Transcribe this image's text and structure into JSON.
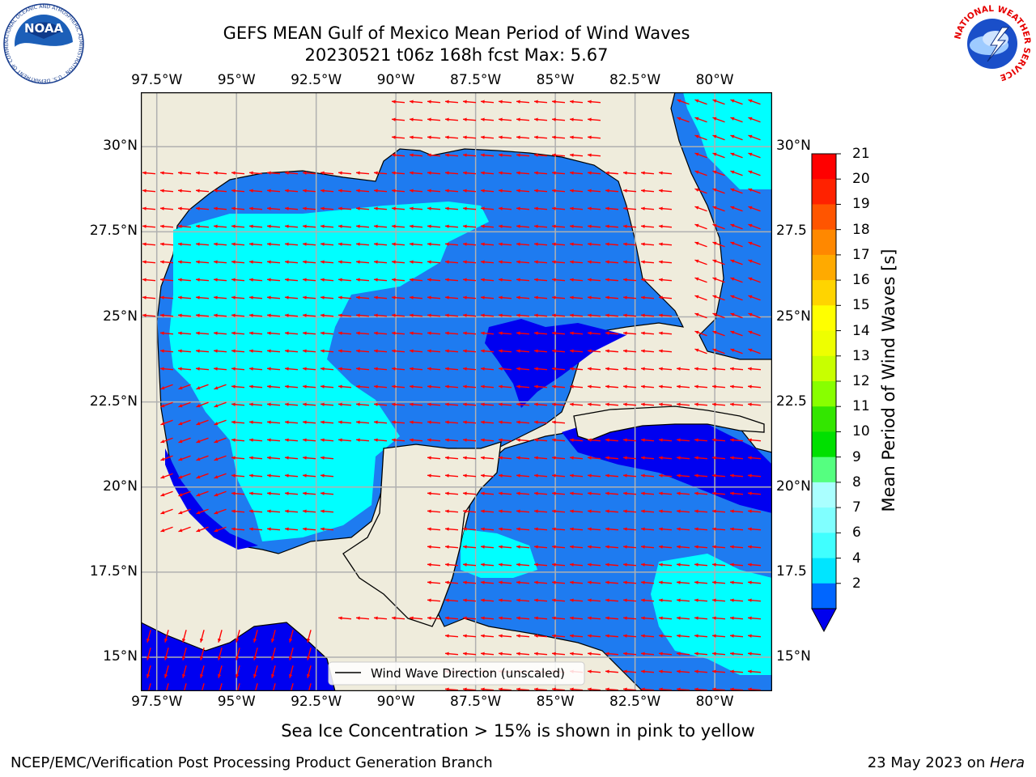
{
  "title": {
    "line1": "GEFS MEAN Gulf of Mexico Mean Period of Wind Waves",
    "line2": "20230521 t06z 168h fcst   Max: 5.67"
  },
  "map": {
    "lon_ticks": [
      "97.5°W",
      "95°W",
      "92.5°W",
      "90°W",
      "87.5°W",
      "85°W",
      "82.5°W",
      "80°W"
    ],
    "lat_ticks_left": [
      "30°N",
      "27.5°N",
      "25°N",
      "22.5°N",
      "20°N",
      "17.5°N",
      "15°N"
    ],
    "lat_ticks_right": [
      "30°N",
      "27.5",
      "25°N",
      "22.5",
      "20°N",
      "17.5",
      "15°N"
    ],
    "lon_range": [
      -98,
      -78.2
    ],
    "lat_range": [
      14,
      31.6
    ],
    "legend_label": "Wind Wave Direction (unscaled)",
    "colors": {
      "land": "#efecdc",
      "band_2_4": "#1e7bf0",
      "band_4_6": "#00ffff",
      "below_2": "#0000f0",
      "arrow": "#ff0000",
      "grid": "#b0b0b0"
    }
  },
  "colorbar": {
    "label": "Mean Period of Wind Waves [s]",
    "ticks": [
      "2",
      "4",
      "6",
      "7",
      "8",
      "9",
      "10",
      "11",
      "12",
      "13",
      "14",
      "15",
      "16",
      "17",
      "18",
      "19",
      "20",
      "21"
    ],
    "colors": [
      "#0066ff",
      "#00e5ff",
      "#40ffff",
      "#80ffff",
      "#aaffff",
      "#55ff80",
      "#00e000",
      "#33e600",
      "#88ff00",
      "#c8ff00",
      "#eeff00",
      "#ffff00",
      "#ffd400",
      "#ffaa00",
      "#ff8800",
      "#ff5500",
      "#ff2200",
      "#ff0000"
    ],
    "extend_color": "#0000ee"
  },
  "note": "Sea Ice Concentration > 15% is shown in pink to yellow",
  "footer": {
    "left": "NCEP/EMC/Verification Post Processing Product Generation Branch",
    "date": "23 May 2023 on ",
    "machine": "Hera"
  },
  "logos": {
    "noaa": "NOAA",
    "noaa_ring": "NATIONAL OCEANIC AND ATMOSPHERIC ADMINISTRATION · U.S. DEPARTMENT OF COMMERCE",
    "nws_ring": "NATIONAL WEATHER SERVICE"
  }
}
